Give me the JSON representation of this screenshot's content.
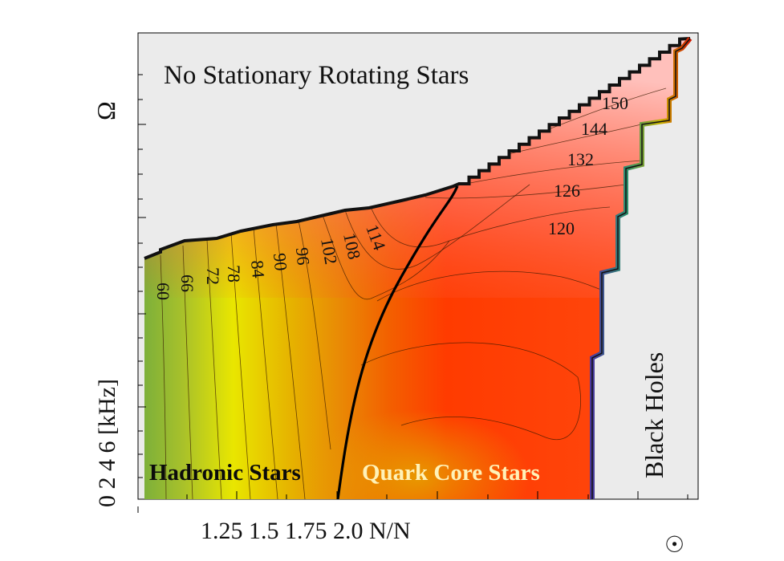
{
  "chart_data": {
    "type": "contour",
    "xlabel": "N/N",
    "x_sun_symbol": "☉",
    "ylabel": "Ω",
    "y_tick_text": "0 2 4 6 [kHz]",
    "x_tick_labels": [
      "1.25",
      "1.5",
      "1.75",
      "2.0"
    ],
    "regions": {
      "top": "No Stationary Rotating Stars",
      "right": "Black Holes",
      "hadronic": "Hadronic Stars",
      "quark": "Quark Core Stars"
    },
    "contour_levels": [
      "60",
      "66",
      "72",
      "78",
      "84",
      "90",
      "96",
      "102",
      "108",
      "114",
      "120",
      "126",
      "132",
      "144",
      "150"
    ],
    "colors": {
      "frame": "#000000",
      "background_region": "#ebebeb",
      "low": "#7db13c",
      "mid": "#e8e400",
      "orange": "#e8870a",
      "high": "#ff3a00",
      "top_high": "#ffb1ad",
      "divider": "#000000",
      "quark_label": "#fff2b8",
      "hadronic_label": "#0b0b0b"
    }
  }
}
